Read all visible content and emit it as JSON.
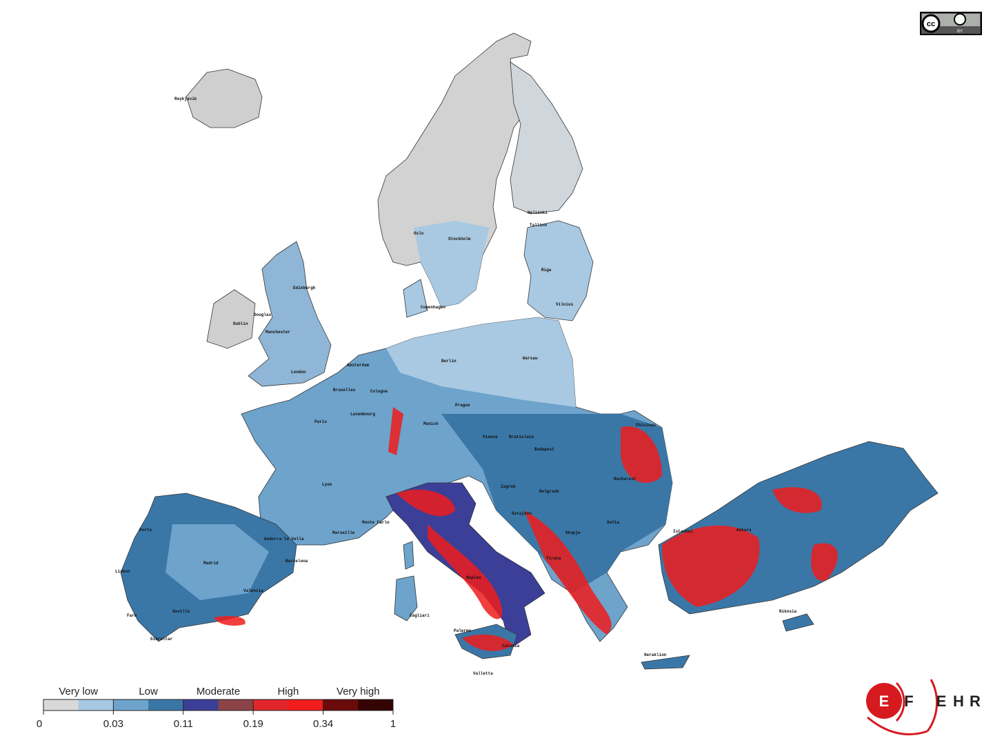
{
  "cities": [
    "Reykjavik",
    "Helsinki",
    "Tallinn",
    "Oslo",
    "Stockholm",
    "Riga",
    "Copenhagen",
    "Vilnius",
    "Edinburgh",
    "Dublin",
    "Douglas",
    "Manchester",
    "London",
    "Amsterdam",
    "Berlin",
    "Warsaw",
    "Bruxelles",
    "Cologne",
    "Luxembourg",
    "Paris",
    "Prague",
    "Munich",
    "Vienna",
    "Bratislava",
    "Budapest",
    "Chisinau",
    "Bucharest",
    "Lyon",
    "Zagreb",
    "Belgrade",
    "Sarajevo",
    "Sofia",
    "Skopje",
    "Tirana",
    "Marseille",
    "Monte Carlo",
    "Andorra la Vella",
    "Barcelona",
    "Madrid",
    "Valencia",
    "Porto",
    "Lisbon",
    "Seville",
    "Faro",
    "Gibraltar",
    "Naples",
    "Palermo",
    "Catania",
    "Valletta",
    "Cagliari",
    "Heraklion",
    "Nikosia",
    "Istanbul",
    "Ankara"
  ],
  "legend": {
    "classes": [
      "Very low",
      "Low",
      "Moderate",
      "High",
      "Very high"
    ],
    "ticks": [
      0,
      0.03,
      0.11,
      0.19,
      0.34,
      1
    ],
    "colors": [
      "#d9d9d9",
      "#a9c9e2",
      "#6ea3cb",
      "#3a77a7",
      "#3b3f98",
      "#8b4347",
      "#e0262b",
      "#f21c1c",
      "#6b0a0a",
      "#350404"
    ]
  },
  "license": {
    "icon": "cc",
    "label": "BY"
  },
  "logo": [
    "E",
    "F",
    "E",
    "H",
    "R"
  ]
}
